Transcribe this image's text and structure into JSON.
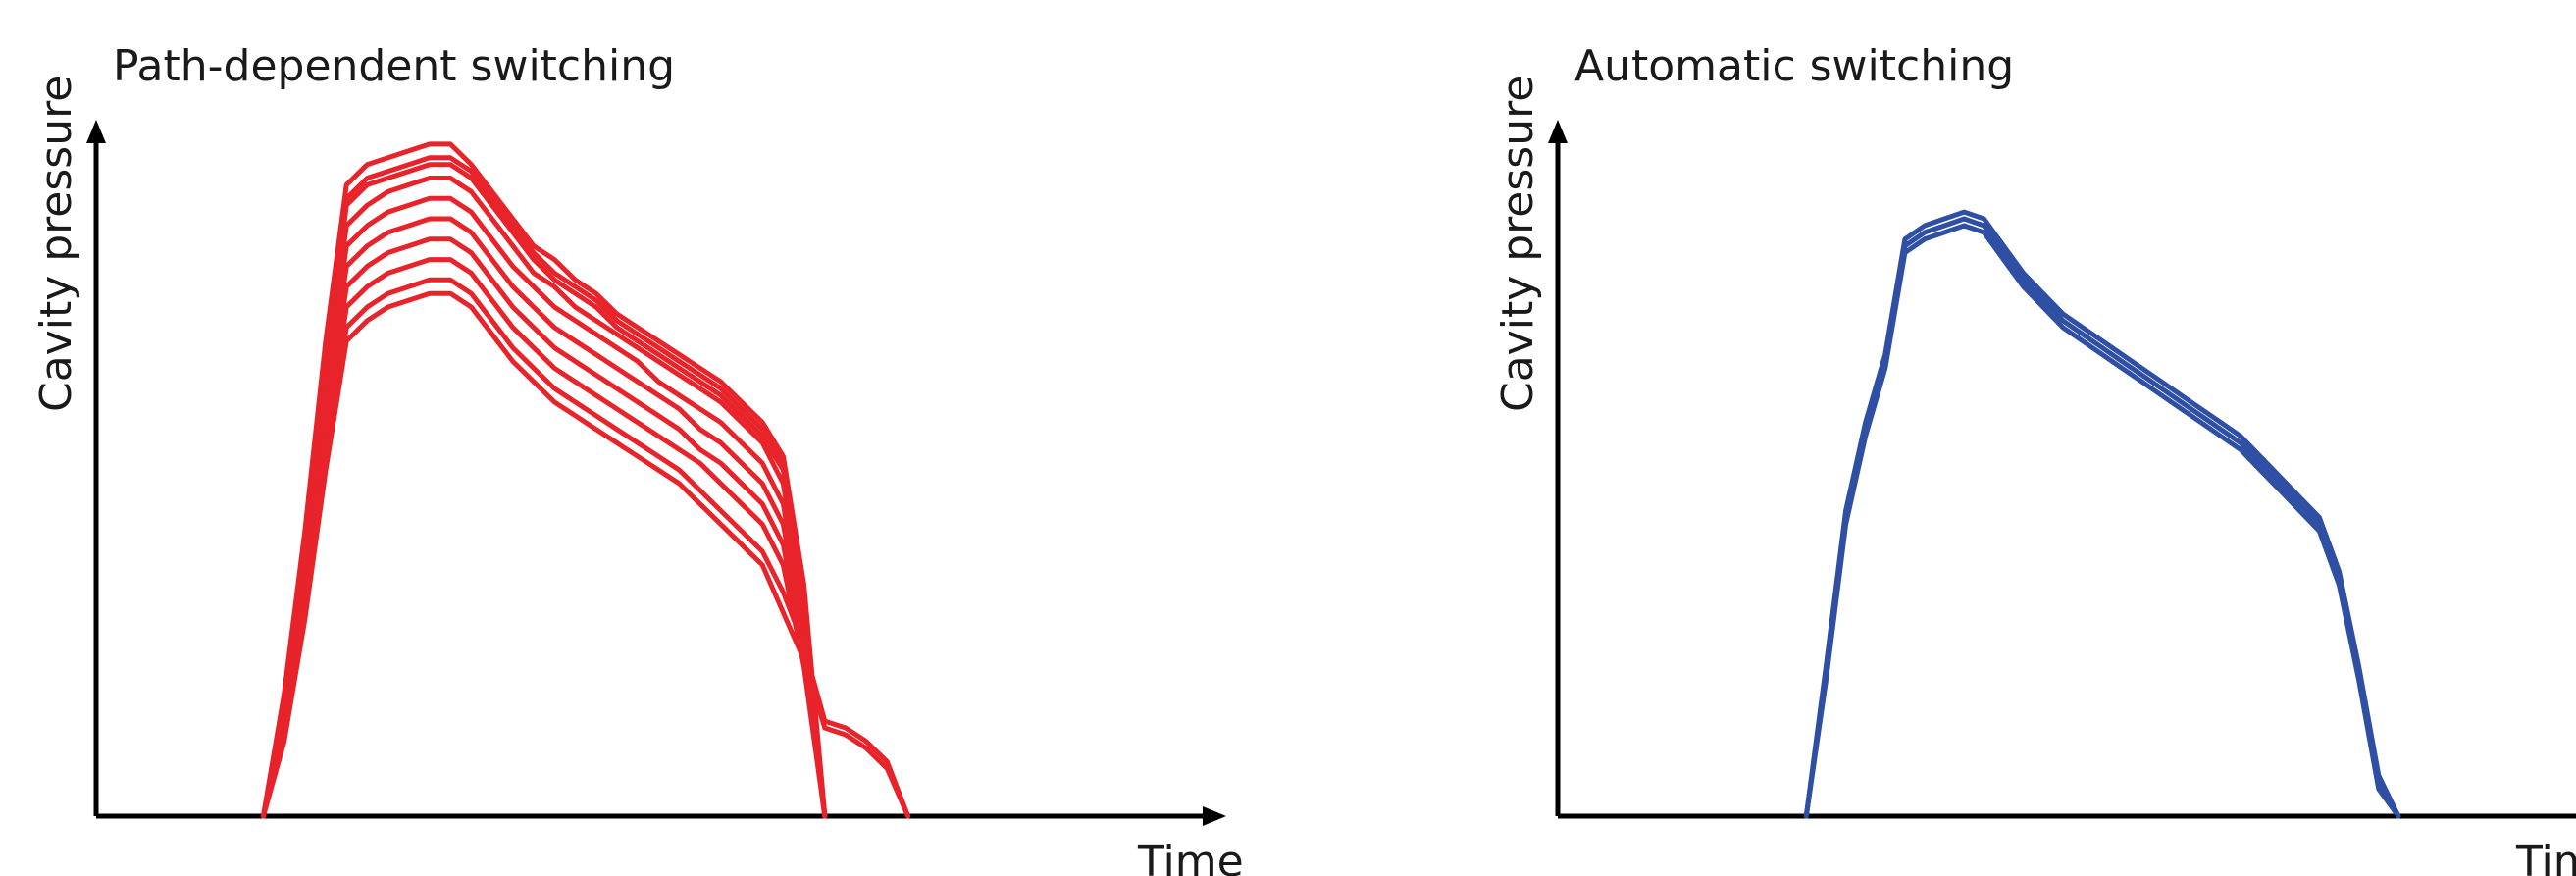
{
  "chart_data": [
    {
      "type": "line",
      "title": "Path-dependent switching",
      "xlabel": "Time",
      "ylabel": "Cavity pressure",
      "xlim": [
        0,
        100
      ],
      "ylim": [
        0,
        100
      ],
      "grid": false,
      "color": "#e8232a",
      "x": [
        0,
        2,
        4,
        6,
        8,
        10,
        12,
        14,
        16,
        18,
        20,
        22,
        24,
        26,
        28,
        30,
        32,
        34,
        36,
        38,
        40,
        42,
        44,
        46,
        48,
        50,
        52,
        54,
        56,
        58,
        60,
        62,
        64,
        66,
        68,
        70,
        72,
        74,
        76,
        78,
        80,
        82,
        84,
        86,
        88,
        90,
        92,
        94,
        96,
        98,
        100
      ],
      "series": [
        {
          "values": [
            0,
            0,
            0,
            0,
            0,
            0,
            0,
            0,
            18,
            42,
            70,
            93,
            96,
            97,
            98,
            99,
            99,
            96,
            92,
            88,
            84,
            82,
            79,
            77,
            74,
            72,
            70,
            68,
            66,
            64,
            61,
            58,
            53,
            34,
            0,
            0,
            0,
            0,
            0,
            0,
            0,
            0,
            0,
            0,
            0,
            0,
            0,
            0,
            0,
            0,
            0
          ]
        },
        {
          "values": [
            0,
            0,
            0,
            0,
            0,
            0,
            0,
            0,
            16,
            40,
            68,
            91,
            94,
            95,
            96,
            97,
            97,
            95,
            91,
            87,
            83,
            80,
            78,
            76,
            73,
            71,
            69,
            67,
            65,
            63,
            60,
            57,
            52,
            33,
            0,
            0,
            0,
            0,
            0,
            0,
            0,
            0,
            0,
            0,
            0,
            0,
            0,
            0,
            0,
            0,
            0
          ]
        },
        {
          "values": [
            0,
            0,
            0,
            0,
            0,
            0,
            0,
            0,
            14,
            38,
            66,
            90,
            93,
            94,
            95,
            96,
            96,
            94,
            90,
            86,
            82,
            79,
            77,
            75,
            72,
            70,
            68,
            66,
            64,
            62,
            59,
            56,
            51,
            32,
            0,
            0,
            0,
            0,
            0,
            0,
            0,
            0,
            0,
            0,
            0,
            0,
            0,
            0,
            0,
            0,
            0
          ]
        },
        {
          "values": [
            0,
            0,
            0,
            0,
            0,
            0,
            0,
            0,
            15,
            38,
            64,
            87,
            90,
            92,
            93,
            94,
            94,
            92,
            88,
            84,
            80,
            78,
            75,
            73,
            71,
            69,
            67,
            65,
            63,
            61,
            58,
            55,
            49,
            30,
            0,
            0,
            0,
            0,
            0,
            0,
            0,
            0,
            0,
            0,
            0,
            0,
            0,
            0,
            0,
            0,
            0
          ]
        },
        {
          "values": [
            0,
            0,
            0,
            0,
            0,
            0,
            0,
            0,
            14,
            36,
            62,
            84,
            87,
            89,
            90,
            91,
            91,
            89,
            85,
            81,
            78,
            75,
            73,
            71,
            69,
            67,
            64,
            62,
            60,
            58,
            55,
            52,
            46,
            28,
            0,
            0,
            0,
            0,
            0,
            0,
            0,
            0,
            0,
            0,
            0,
            0,
            0,
            0,
            0,
            0,
            0
          ]
        },
        {
          "values": [
            0,
            0,
            0,
            0,
            0,
            0,
            0,
            0,
            13,
            35,
            60,
            81,
            84,
            86,
            87,
            88,
            88,
            86,
            82,
            78,
            75,
            72,
            70,
            68,
            66,
            64,
            62,
            60,
            57,
            55,
            52,
            49,
            43,
            26,
            0,
            0,
            0,
            0,
            0,
            0,
            0,
            0,
            0,
            0,
            0,
            0,
            0,
            0,
            0,
            0,
            0
          ]
        },
        {
          "values": [
            0,
            0,
            0,
            0,
            0,
            0,
            0,
            0,
            12,
            33,
            57,
            78,
            81,
            83,
            84,
            85,
            85,
            83,
            79,
            75,
            72,
            69,
            67,
            65,
            63,
            61,
            59,
            57,
            54,
            52,
            49,
            46,
            40,
            24,
            0,
            0,
            0,
            0,
            0,
            0,
            0,
            0,
            0,
            0,
            0,
            0,
            0,
            0,
            0,
            0,
            0
          ]
        },
        {
          "values": [
            0,
            0,
            0,
            0,
            0,
            0,
            0,
            0,
            12,
            32,
            55,
            75,
            78,
            80,
            81,
            82,
            82,
            80,
            76,
            72,
            69,
            66,
            64,
            62,
            60,
            58,
            56,
            54,
            52,
            49,
            46,
            43,
            37,
            22,
            0,
            0,
            0,
            0,
            0,
            0,
            0,
            0,
            0,
            0,
            0,
            0,
            0,
            0,
            0,
            0,
            0
          ]
        },
        {
          "values": [
            0,
            0,
            0,
            0,
            0,
            0,
            0,
            0,
            11,
            30,
            53,
            72,
            75,
            77,
            78,
            79,
            79,
            77,
            73,
            69,
            66,
            63,
            61,
            59,
            57,
            55,
            53,
            51,
            48,
            45,
            42,
            39,
            33,
            25,
            14,
            13,
            11,
            8,
            0,
            0,
            0,
            0,
            0,
            0,
            0,
            0,
            0,
            0,
            0,
            0,
            0
          ]
        },
        {
          "values": [
            0,
            0,
            0,
            0,
            0,
            0,
            0,
            0,
            11,
            29,
            51,
            70,
            73,
            75,
            76,
            77,
            77,
            75,
            71,
            67,
            64,
            61,
            59,
            57,
            55,
            53,
            51,
            49,
            46,
            43,
            40,
            37,
            30,
            23,
            13,
            12,
            10,
            7,
            0,
            0,
            0,
            0,
            0,
            0,
            0,
            0,
            0,
            0,
            0,
            0,
            0
          ]
        }
      ]
    },
    {
      "type": "line",
      "title": "Automatic switching",
      "xlabel": "Time",
      "ylabel": "Cavity pressure",
      "xlim": [
        0,
        100
      ],
      "ylim": [
        0,
        100
      ],
      "grid": false,
      "color": "#2e4fa3",
      "x": [
        0,
        2,
        4,
        6,
        8,
        10,
        12,
        14,
        16,
        18,
        20,
        22,
        24,
        26,
        28,
        30,
        32,
        34,
        36,
        38,
        40,
        42,
        44,
        46,
        48,
        50,
        52,
        54,
        56,
        58,
        60,
        62,
        64,
        66,
        68,
        70,
        72,
        74,
        76,
        78,
        80,
        82,
        84,
        86,
        88,
        90,
        92,
        94,
        96,
        98,
        100
      ],
      "series": [
        {
          "values": [
            0,
            0,
            0,
            0,
            0,
            0,
            0,
            0,
            0,
            0,
            0,
            0,
            22,
            45,
            58,
            68,
            85,
            87,
            88,
            89,
            88,
            84,
            80,
            77,
            74,
            72,
            70,
            68,
            66,
            64,
            62,
            60,
            58,
            56,
            53,
            50,
            47,
            44,
            36,
            22,
            6,
            0,
            0,
            0,
            0,
            0,
            0,
            0,
            0,
            0,
            0
          ]
        },
        {
          "values": [
            0,
            0,
            0,
            0,
            0,
            0,
            0,
            0,
            0,
            0,
            0,
            0,
            21,
            44,
            57,
            67,
            84,
            86,
            87,
            88,
            87,
            83,
            79,
            76,
            73,
            71,
            69,
            67,
            65,
            63,
            61,
            59,
            57,
            55,
            52,
            49,
            46,
            43,
            35,
            21,
            5,
            0,
            0,
            0,
            0,
            0,
            0,
            0,
            0,
            0,
            0
          ]
        },
        {
          "values": [
            0,
            0,
            0,
            0,
            0,
            0,
            0,
            0,
            0,
            0,
            0,
            0,
            20,
            43,
            56,
            66,
            83,
            85,
            86,
            87,
            86,
            82,
            78,
            75,
            72,
            70,
            68,
            66,
            64,
            62,
            60,
            58,
            56,
            54,
            51,
            48,
            45,
            42,
            34,
            20,
            4,
            0,
            0,
            0,
            0,
            0,
            0,
            0,
            0,
            0,
            0
          ]
        }
      ]
    }
  ]
}
